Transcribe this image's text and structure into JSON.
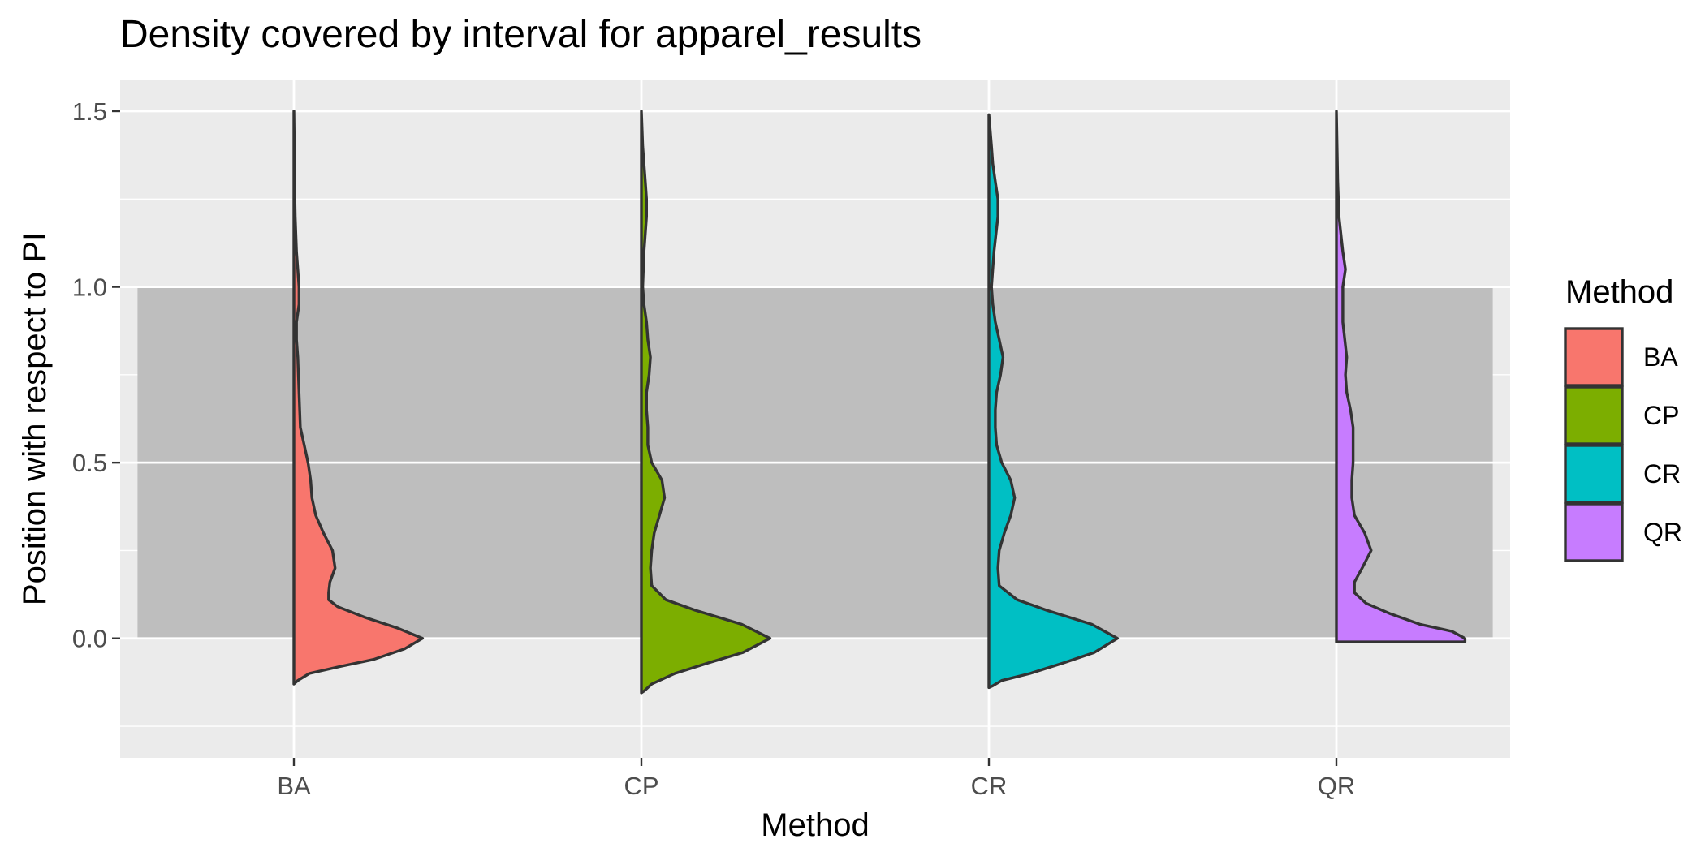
{
  "chart_data": {
    "type": "half-violin",
    "title": "Density covered by interval for apparel_results",
    "xlabel": "Method",
    "ylabel": "Position with respect to PI",
    "categories": [
      "BA",
      "CP",
      "CR",
      "QR"
    ],
    "ylim": [
      -0.34,
      1.59
    ],
    "yticks": [
      0.0,
      0.5,
      1.0,
      1.5
    ],
    "y_tick_labels": [
      "0.0",
      "0.5",
      "1.0",
      "1.5"
    ],
    "grid": true,
    "interval_band": {
      "from": 0.0,
      "to": 1.0,
      "color": "#bebebe"
    },
    "legend": {
      "title": "Method",
      "placement": "right",
      "entries": [
        {
          "label": "BA",
          "color": "#F8766D"
        },
        {
          "label": "CP",
          "color": "#7CAE00"
        },
        {
          "label": "CR",
          "color": "#00BFC4"
        },
        {
          "label": "QR",
          "color": "#C77CFF"
        }
      ]
    },
    "series": [
      {
        "name": "BA",
        "color": "#F8766D",
        "y": [
          -0.13,
          -0.12,
          -0.1,
          -0.08,
          -0.06,
          -0.03,
          0.0,
          0.03,
          0.06,
          0.09,
          0.11,
          0.13,
          0.16,
          0.2,
          0.25,
          0.3,
          0.35,
          0.4,
          0.45,
          0.5,
          0.55,
          0.6,
          0.7,
          0.8,
          0.85,
          0.9,
          0.95,
          1.0,
          1.05,
          1.1,
          1.2,
          1.3,
          1.4,
          1.5
        ],
        "density": [
          0.0,
          0.03,
          0.12,
          0.36,
          0.62,
          0.86,
          1.0,
          0.8,
          0.55,
          0.34,
          0.27,
          0.27,
          0.28,
          0.32,
          0.3,
          0.23,
          0.17,
          0.14,
          0.13,
          0.11,
          0.08,
          0.05,
          0.04,
          0.03,
          0.02,
          0.02,
          0.04,
          0.04,
          0.03,
          0.02,
          0.01,
          0.005,
          0.003,
          0.0
        ]
      },
      {
        "name": "CP",
        "color": "#7CAE00",
        "y": [
          -0.155,
          -0.15,
          -0.13,
          -0.1,
          -0.07,
          -0.04,
          0.0,
          0.04,
          0.08,
          0.11,
          0.15,
          0.2,
          0.25,
          0.3,
          0.35,
          0.4,
          0.45,
          0.5,
          0.55,
          0.6,
          0.65,
          0.7,
          0.75,
          0.8,
          0.85,
          0.9,
          0.95,
          1.0,
          1.1,
          1.2,
          1.25,
          1.3,
          1.35,
          1.4,
          1.5
        ],
        "density": [
          0.0,
          0.02,
          0.08,
          0.26,
          0.52,
          0.79,
          1.0,
          0.78,
          0.42,
          0.19,
          0.08,
          0.07,
          0.08,
          0.1,
          0.14,
          0.18,
          0.16,
          0.08,
          0.05,
          0.05,
          0.04,
          0.04,
          0.06,
          0.07,
          0.05,
          0.04,
          0.02,
          0.01,
          0.02,
          0.04,
          0.04,
          0.03,
          0.02,
          0.01,
          0.0
        ]
      },
      {
        "name": "CR",
        "color": "#00BFC4",
        "y": [
          -0.14,
          -0.135,
          -0.12,
          -0.1,
          -0.07,
          -0.04,
          0.0,
          0.04,
          0.08,
          0.11,
          0.15,
          0.2,
          0.25,
          0.3,
          0.35,
          0.4,
          0.45,
          0.5,
          0.55,
          0.6,
          0.65,
          0.7,
          0.75,
          0.8,
          0.85,
          0.9,
          0.95,
          1.0,
          1.1,
          1.2,
          1.25,
          1.3,
          1.35,
          1.4,
          1.49
        ],
        "density": [
          0.0,
          0.03,
          0.1,
          0.32,
          0.58,
          0.82,
          1.0,
          0.8,
          0.45,
          0.22,
          0.08,
          0.07,
          0.08,
          0.12,
          0.17,
          0.2,
          0.17,
          0.1,
          0.06,
          0.05,
          0.05,
          0.06,
          0.09,
          0.11,
          0.08,
          0.05,
          0.03,
          0.02,
          0.04,
          0.07,
          0.07,
          0.05,
          0.03,
          0.02,
          0.0
        ]
      },
      {
        "name": "QR",
        "color": "#C77CFF",
        "y": [
          -0.01,
          0.0,
          0.02,
          0.04,
          0.07,
          0.1,
          0.13,
          0.16,
          0.2,
          0.25,
          0.3,
          0.35,
          0.4,
          0.45,
          0.5,
          0.55,
          0.6,
          0.65,
          0.7,
          0.75,
          0.8,
          0.9,
          1.0,
          1.05,
          1.1,
          1.2,
          1.3,
          1.4,
          1.5
        ],
        "density": [
          1.0,
          1.0,
          0.9,
          0.65,
          0.42,
          0.23,
          0.14,
          0.14,
          0.2,
          0.27,
          0.22,
          0.14,
          0.12,
          0.12,
          0.13,
          0.13,
          0.13,
          0.11,
          0.08,
          0.07,
          0.08,
          0.05,
          0.05,
          0.07,
          0.05,
          0.02,
          0.01,
          0.005,
          0.0
        ]
      }
    ]
  }
}
